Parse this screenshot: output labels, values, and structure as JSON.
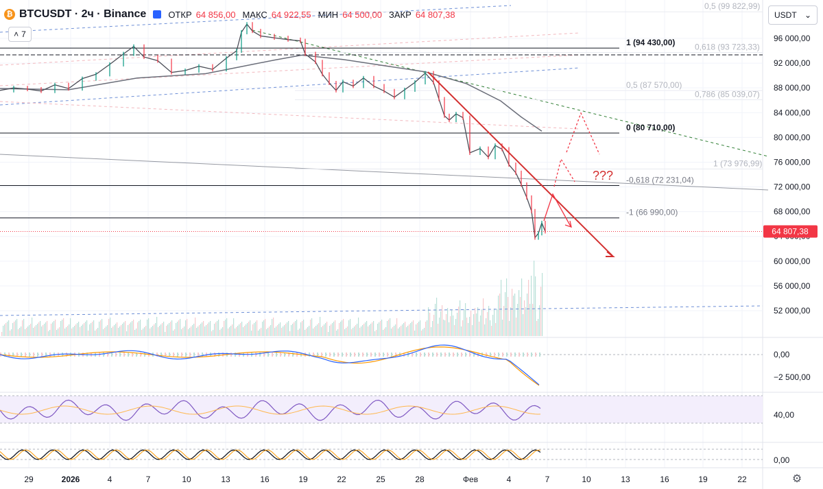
{
  "header": {
    "coin_icon": "bitcoin-icon",
    "symbol": "BTCUSDT · 2ч · Binance",
    "open_label": "ОТКР",
    "open_value": "64 856,00",
    "high_label": "МАКС",
    "high_value": "64 922,55",
    "low_label": "МИН",
    "low_value": "64 500,00",
    "close_label": "ЗАКР",
    "close_value": "64 807,38"
  },
  "indicators_button": {
    "chevron": "˄",
    "count": "7"
  },
  "currency_button": {
    "label": "USDT",
    "icon": "chevron-down-icon"
  },
  "colors": {
    "red": "#f23645",
    "up": "#089981",
    "grid": "#f0f3fa",
    "accent": "#2962ff"
  },
  "chart_data": {
    "type": "line",
    "price_axis_labels": [
      "96 000,00",
      "92 000,00",
      "88 000,00",
      "84 000,00",
      "80 000,00",
      "76 000,00",
      "72 000,00",
      "68 000,00",
      "64 000,00",
      "60 000,00",
      "56 000,00",
      "52 000,00"
    ],
    "price_axis_values": [
      96000,
      92000,
      88000,
      84000,
      80000,
      76000,
      72000,
      68000,
      64000,
      60000,
      56000,
      52000
    ],
    "ylim": [
      50000,
      100500
    ],
    "x_labels": [
      "29",
      "2026",
      "4",
      "7",
      "10",
      "13",
      "16",
      "19",
      "22",
      "25",
      "28",
      "Фев",
      "4",
      "7",
      "10",
      "13",
      "16",
      "19",
      "22"
    ],
    "last_price": {
      "value": 64807.38,
      "label": "64 807,38"
    },
    "price_path": [
      [
        0,
        87600
      ],
      [
        20,
        88000
      ],
      [
        40,
        87800
      ],
      [
        60,
        87500
      ],
      [
        80,
        88500
      ],
      [
        100,
        87900
      ],
      [
        120,
        89500
      ],
      [
        140,
        90200
      ],
      [
        160,
        91800
      ],
      [
        180,
        93500
      ],
      [
        195,
        94700
      ],
      [
        210,
        93000
      ],
      [
        230,
        92400
      ],
      [
        250,
        90500
      ],
      [
        270,
        90800
      ],
      [
        290,
        91500
      ],
      [
        310,
        91000
      ],
      [
        330,
        92800
      ],
      [
        345,
        94000
      ],
      [
        352,
        97000
      ],
      [
        360,
        98300
      ],
      [
        368,
        97200
      ],
      [
        380,
        96400
      ],
      [
        400,
        96100
      ],
      [
        420,
        95800
      ],
      [
        438,
        95600
      ],
      [
        445,
        93500
      ],
      [
        460,
        92200
      ],
      [
        470,
        90200
      ],
      [
        480,
        88800
      ],
      [
        490,
        87600
      ],
      [
        500,
        89000
      ],
      [
        515,
        88300
      ],
      [
        530,
        89600
      ],
      [
        545,
        88300
      ],
      [
        560,
        87500
      ],
      [
        575,
        86500
      ],
      [
        590,
        87700
      ],
      [
        605,
        88900
      ],
      [
        620,
        90400
      ],
      [
        632,
        88900
      ],
      [
        640,
        86200
      ],
      [
        648,
        83500
      ],
      [
        655,
        82800
      ],
      [
        665,
        83800
      ],
      [
        675,
        83200
      ],
      [
        685,
        77500
      ],
      [
        700,
        78200
      ],
      [
        712,
        76800
      ],
      [
        722,
        78700
      ],
      [
        732,
        78100
      ],
      [
        742,
        75600
      ],
      [
        752,
        74300
      ],
      [
        760,
        72400
      ],
      [
        768,
        70300
      ],
      [
        775,
        68100
      ],
      [
        780,
        63800
      ],
      [
        785,
        64500
      ],
      [
        790,
        66200
      ],
      [
        795,
        64807
      ]
    ],
    "moving_average": [
      [
        0,
        87900
      ],
      [
        100,
        87700
      ],
      [
        200,
        89600
      ],
      [
        300,
        90300
      ],
      [
        350,
        91400
      ],
      [
        400,
        92500
      ],
      [
        440,
        93300
      ],
      [
        500,
        92600
      ],
      [
        560,
        91600
      ],
      [
        620,
        90600
      ],
      [
        680,
        88700
      ],
      [
        730,
        85900
      ],
      [
        760,
        83300
      ],
      [
        790,
        81000
      ]
    ],
    "fib_levels": [
      {
        "label": "0,5 (99 822,99)",
        "price": 100300,
        "color": "#b2b5be"
      },
      {
        "label": "1 (94 430,00)",
        "price": 94430,
        "color": "#131722"
      },
      {
        "label": "0,618 (93 723,33)",
        "price": 93723,
        "color": "#b2b5be"
      },
      {
        "label": "0,5 (87 570,00)",
        "price": 87570,
        "color": "#b2b5be"
      },
      {
        "label": "0,786 (85 039,07)",
        "price": 86100,
        "color": "#b2b5be"
      },
      {
        "label": "0 (80 710,00)",
        "price": 80710,
        "color": "#131722"
      },
      {
        "label": "1 (73 976,99)",
        "price": 74900,
        "color": "#b2b5be"
      },
      {
        "label": "-0,618 (72 231,04)",
        "price": 72231,
        "color": "#787b86"
      },
      {
        "label": "-1 (66 990,00)",
        "price": 66990,
        "color": "#787b86"
      }
    ],
    "annotation": "???",
    "macd_labels": [
      "0,00",
      "−2 500,00"
    ],
    "rsi_label": "40,00",
    "stoch_label": "0,00"
  },
  "settings_icon": "gear-icon"
}
